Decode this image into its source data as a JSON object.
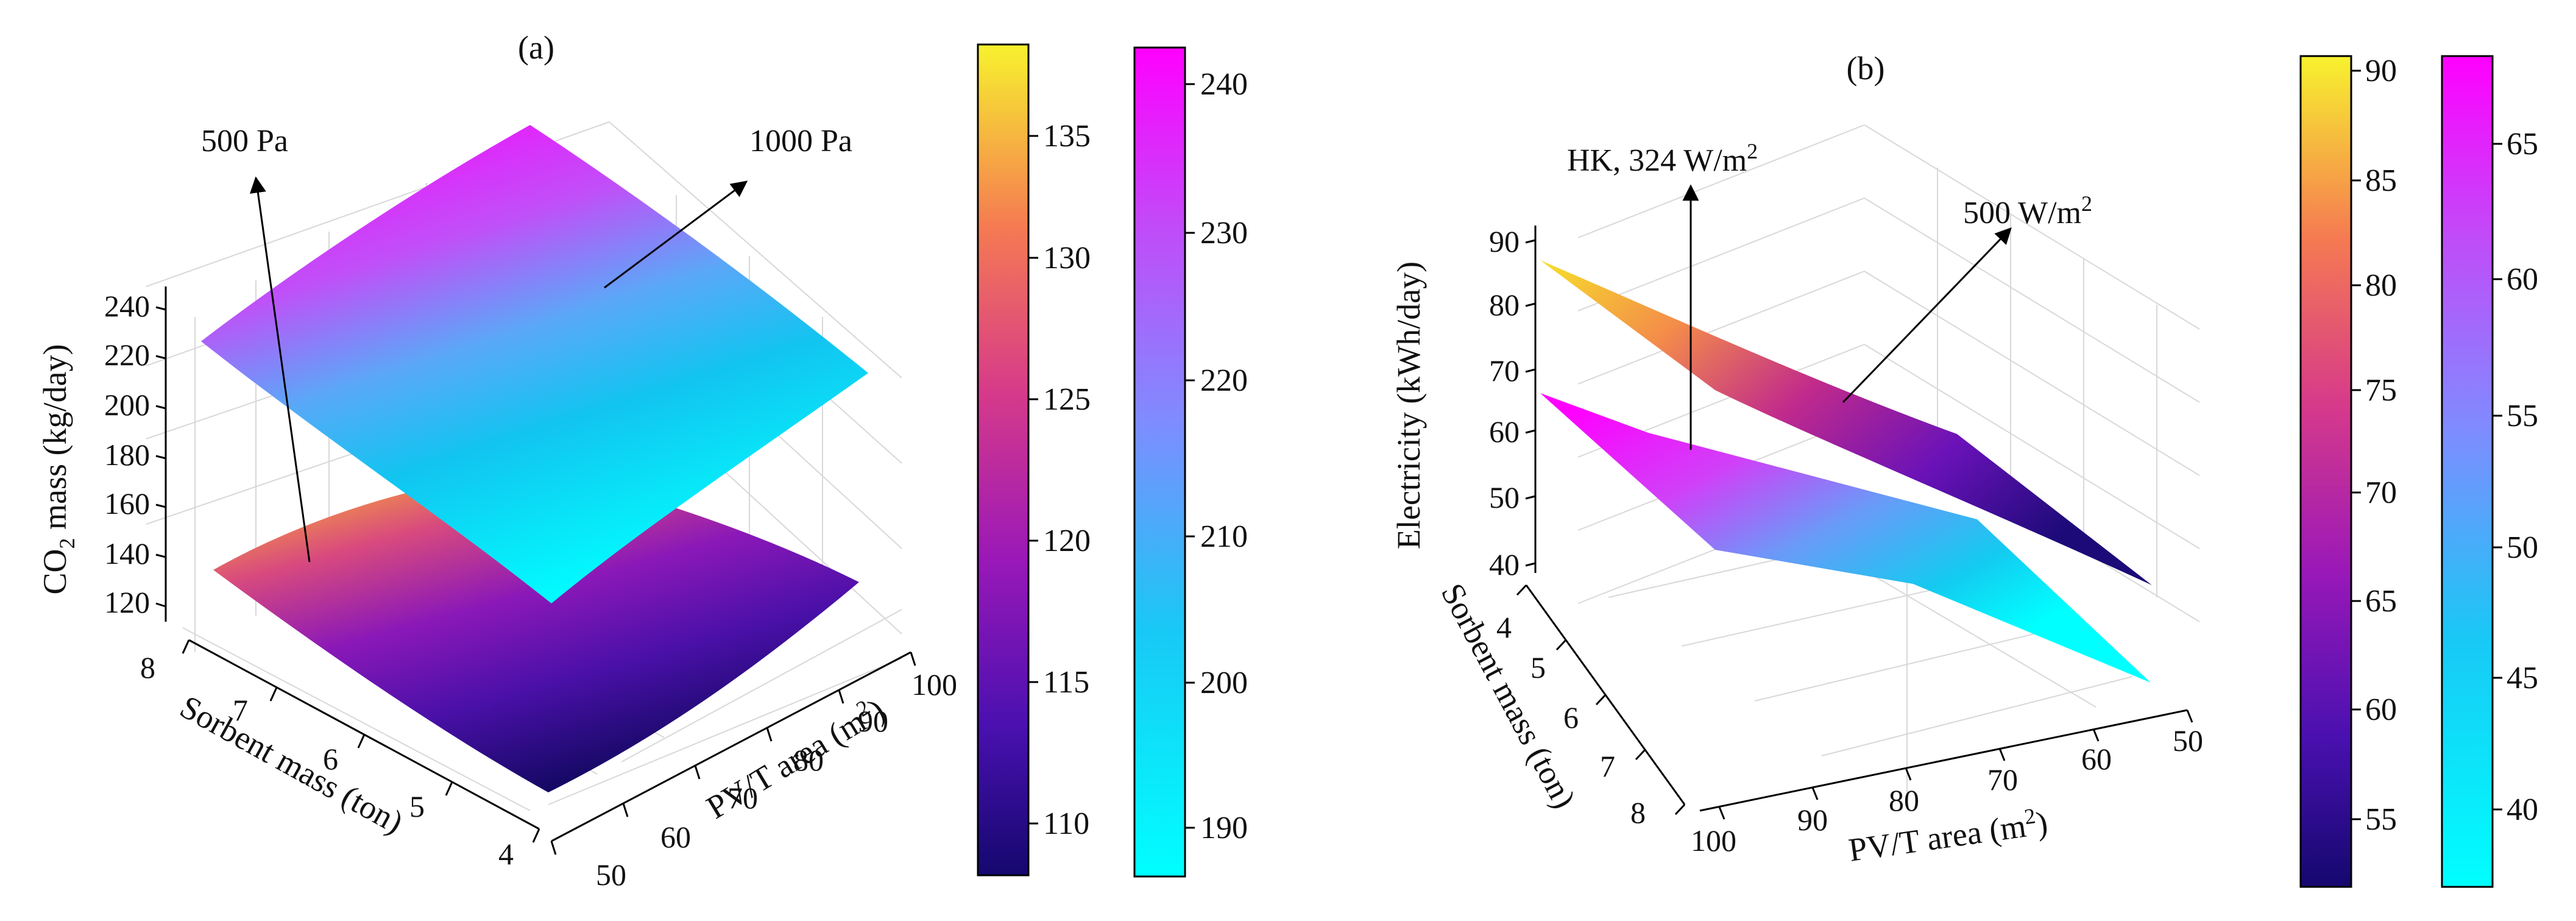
{
  "figure": {
    "panels": [
      {
        "panel_label": "(a)",
        "zlabel_main": "CO",
        "zlabel_sub": "2",
        "zlabel_rest": " mass (kg/day)",
        "ylabel": "Sorbent mass (ton)",
        "xlabel_main": "PV/T area (m",
        "xlabel_sup": "2",
        "xlabel_end": ")",
        "z_ticks": [
          "120",
          "140",
          "160",
          "180",
          "200",
          "220",
          "240"
        ],
        "y_ticks": [
          "8",
          "7",
          "6",
          "5",
          "4"
        ],
        "x_ticks": [
          "50",
          "60",
          "70",
          "80",
          "90",
          "100"
        ],
        "annotations": [
          {
            "text": "500 Pa"
          },
          {
            "text": "1000 Pa"
          }
        ],
        "colorbars": [
          {
            "ticks": [
              "110",
              "115",
              "120",
              "125",
              "130",
              "135"
            ],
            "colormap": "plasma-like",
            "colors": [
              "#1a0a7a",
              "#6a10c0",
              "#b81e9a",
              "#ea5a6a",
              "#f99a40",
              "#f7f130"
            ]
          },
          {
            "ticks": [
              "190",
              "200",
              "210",
              "220",
              "230",
              "240"
            ],
            "colormap": "cool",
            "colors": [
              "#00ffff",
              "#3fb4f5",
              "#8080ff",
              "#c050ff",
              "#ff00ff"
            ]
          }
        ]
      },
      {
        "panel_label": "(b)",
        "zlabel": "Electricity (kWh/day)",
        "ylabel": "Sorbent mass (ton)",
        "xlabel_main": "PV/T area (m",
        "xlabel_sup": "2",
        "xlabel_end": ")",
        "z_ticks": [
          "40",
          "50",
          "60",
          "70",
          "80",
          "90"
        ],
        "y_ticks": [
          "4",
          "5",
          "6",
          "7",
          "8"
        ],
        "x_ticks": [
          "100",
          "90",
          "80",
          "70",
          "60",
          "50"
        ],
        "annotations": [
          {
            "text_main": "HK, 324 W/m",
            "text_sup": "2"
          },
          {
            "text_main": "500 W/m",
            "text_sup": "2"
          }
        ],
        "colorbars": [
          {
            "ticks": [
              "55",
              "60",
              "65",
              "70",
              "75",
              "80",
              "85",
              "90"
            ],
            "colormap": "plasma-like",
            "colors": [
              "#1a0a7a",
              "#6a10c0",
              "#b81e9a",
              "#ea5a6a",
              "#f99a40",
              "#f7f130"
            ]
          },
          {
            "ticks": [
              "40",
              "45",
              "50",
              "55",
              "60",
              "65"
            ],
            "colormap": "cool",
            "colors": [
              "#00ffff",
              "#3fb4f5",
              "#8080ff",
              "#c050ff",
              "#ff00ff"
            ]
          }
        ]
      }
    ]
  },
  "chart_data": [
    {
      "type": "surface",
      "panel": "(a)",
      "xlabel": "PV/T area (m2)",
      "ylabel": "Sorbent mass (ton)",
      "zlabel": "CO2 mass (kg/day)",
      "xlim": [
        50,
        100
      ],
      "ylim": [
        4,
        8
      ],
      "zlim": [
        120,
        240
      ],
      "series": [
        {
          "name": "500 Pa",
          "colormap": "plasma",
          "corners": {
            "x50_y4": 108,
            "x100_y4": 122,
            "x50_y8": 127,
            "x100_y8": 138
          },
          "colorbar_range": [
            108,
            138
          ]
        },
        {
          "name": "1000 Pa",
          "colormap": "cool",
          "corners": {
            "x50_y4": 186,
            "x100_y4": 206,
            "x50_y8": 222,
            "x100_y8": 243
          },
          "colorbar_range": [
            186,
            243
          ]
        }
      ]
    },
    {
      "type": "surface",
      "panel": "(b)",
      "xlabel": "PV/T area (m2)",
      "ylabel": "Sorbent mass (ton)",
      "zlabel": "Electricity (kWh/day)",
      "xlim": [
        50,
        100
      ],
      "ylim": [
        4,
        8
      ],
      "zlim": [
        35,
        92
      ],
      "series": [
        {
          "name": "HK, 324 W/m2",
          "colormap": "cool",
          "corners": {
            "x50_y4": 37,
            "x100_y4": 68,
            "x50_y8": 37,
            "x100_y8": 68
          },
          "colorbar_range": [
            37,
            68
          ]
        },
        {
          "name": "500 W/m2",
          "colormap": "plasma",
          "corners": {
            "x50_y4": 52,
            "x100_y4": 90,
            "x50_y8": 52,
            "x100_y8": 90
          },
          "colorbar_range": [
            52,
            90
          ]
        }
      ]
    }
  ]
}
